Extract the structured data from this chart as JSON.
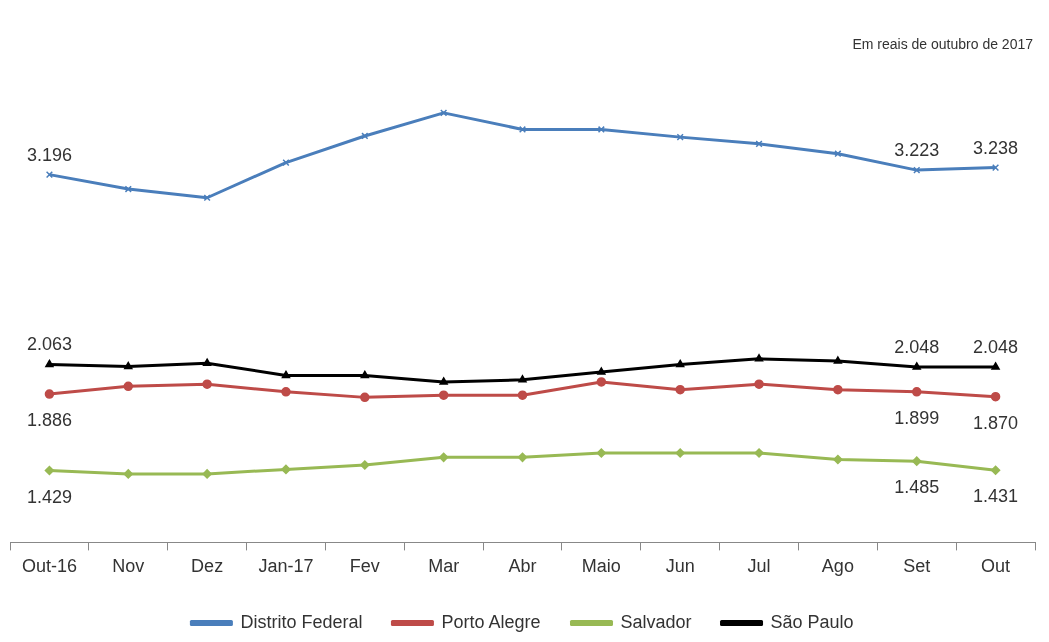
{
  "chart_data": {
    "type": "line",
    "categories": [
      "Out-16",
      "Nov",
      "Dez",
      "Jan-17",
      "Fev",
      "Mar",
      "Abr",
      "Maio",
      "Jun",
      "Jul",
      "Ago",
      "Set",
      "Out"
    ],
    "tick_labels": "x",
    "legend": "bottom",
    "grid": false,
    "annotations": [
      "Em reais de outubro de 2017"
    ],
    "series": [
      {
        "name": "Distrito Federal",
        "color": "#4a7ebb",
        "marker": "cross",
        "values": [
          3196,
          3110,
          3058,
          3268,
          3427,
          3565,
          3466,
          3466,
          3420,
          3380,
          3321,
          3223,
          3238
        ],
        "value_labels": [
          "3.196",
          null,
          null,
          null,
          null,
          null,
          null,
          null,
          null,
          null,
          null,
          "3.223",
          "3.238"
        ]
      },
      {
        "name": "Porto Alegre",
        "color": "#be4b48",
        "marker": "circle",
        "values": [
          1886,
          1932,
          1945,
          1899,
          1866,
          1879,
          1879,
          1958,
          1912,
          1945,
          1912,
          1899,
          1870
        ],
        "value_labels": [
          "1.886",
          null,
          null,
          null,
          null,
          null,
          null,
          null,
          null,
          null,
          null,
          "1.899",
          "1.870"
        ]
      },
      {
        "name": "Salvador",
        "color": "#98b954",
        "marker": "diamond",
        "values": [
          1429,
          1409,
          1409,
          1436,
          1462,
          1508,
          1508,
          1534,
          1534,
          1534,
          1495,
          1485,
          1431
        ],
        "value_labels": [
          "1.429",
          null,
          null,
          null,
          null,
          null,
          null,
          null,
          null,
          null,
          null,
          "1.485",
          "1.431"
        ]
      },
      {
        "name": "São Paulo",
        "color": "#000000",
        "marker": "triangle",
        "values": [
          2063,
          2050,
          2070,
          1997,
          1997,
          1958,
          1971,
          2017,
          2063,
          2096,
          2083,
          2048,
          2048
        ],
        "value_labels": [
          "2.063",
          null,
          null,
          null,
          null,
          null,
          null,
          null,
          null,
          null,
          null,
          "2.048",
          "2.048"
        ]
      }
    ]
  }
}
